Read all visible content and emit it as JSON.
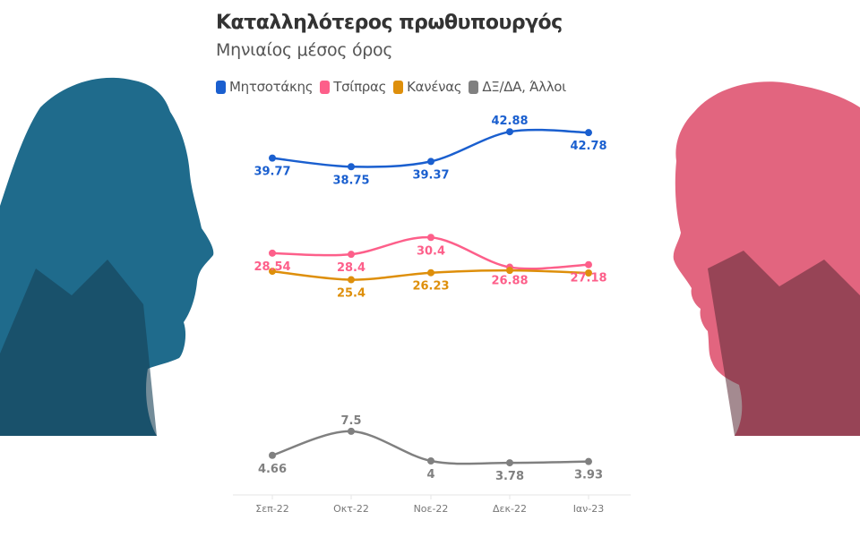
{
  "chart_data": {
    "type": "line",
    "title": "Καταλληλότερος πρωθυπουργός",
    "subtitle": "Μηνιαίος μέσος όρος",
    "categories": [
      "Σεπ-22",
      "Οκτ-22",
      "Νοε-22",
      "Δεκ-22",
      "Ιαν-23"
    ],
    "ylim": [
      0,
      45
    ],
    "grid": false,
    "legend": "top",
    "series": [
      {
        "name": "Μητσοτάκης",
        "color": "#1a5fcf",
        "values": [
          39.77,
          38.75,
          39.37,
          42.88,
          42.78
        ],
        "labels": [
          "39.77",
          "38.75",
          "39.37",
          "42.88",
          "42.78"
        ],
        "label_pos": [
          "below",
          "below",
          "below",
          "above",
          "below"
        ]
      },
      {
        "name": "Τσίπρας",
        "color": "#fd5f8a",
        "values": [
          28.54,
          28.4,
          30.4,
          26.88,
          27.18
        ],
        "labels": [
          "28.54",
          "28.4",
          "30.4",
          "26.88",
          "27.18"
        ],
        "label_pos": [
          "below",
          "below",
          "below",
          "below",
          "below"
        ]
      },
      {
        "name": "Κανένας",
        "color": "#de8f0b",
        "values": [
          26.4,
          25.4,
          26.23,
          26.5,
          26.2
        ],
        "labels": [
          null,
          "25.4",
          "26.23",
          null,
          null
        ],
        "label_pos": [
          "below",
          "below",
          "below",
          "below",
          "below"
        ]
      },
      {
        "name": "ΔΞ/ΔΑ, Άλλοι",
        "color": "#808080",
        "values": [
          4.66,
          7.5,
          4,
          3.78,
          3.93
        ],
        "labels": [
          "4.66",
          "7.5",
          "4",
          "3.78",
          "3.93"
        ],
        "label_pos": [
          "below",
          "above",
          "below",
          "below",
          "below"
        ]
      }
    ]
  },
  "decor": {
    "left_silhouette_color": "#2b7aa0",
    "right_silhouette_color": "#e0607e"
  }
}
